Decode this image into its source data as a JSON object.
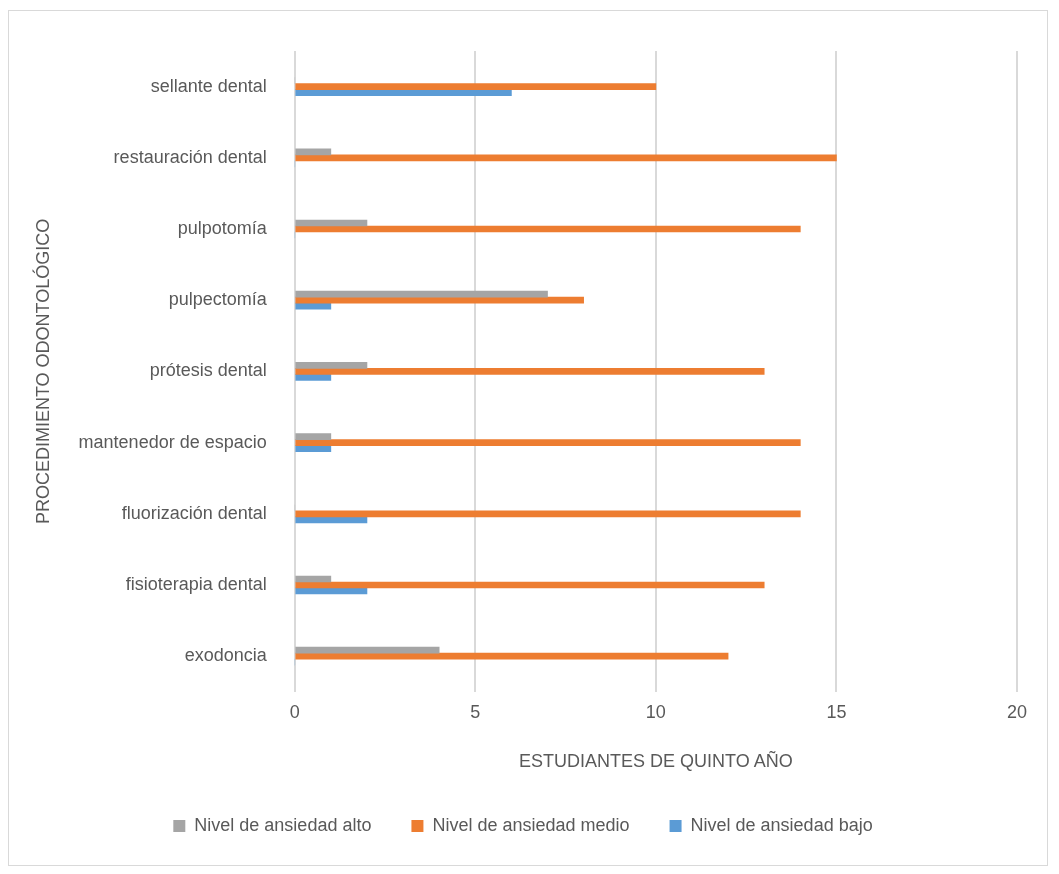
{
  "chart_data": {
    "type": "bar",
    "orientation": "horizontal",
    "xlabel": "ESTUDIANTES DE QUINTO AÑO",
    "ylabel": "PROCEDIMIENTO ODONTOLÓGICO",
    "categories": [
      "sellante dental",
      "restauración dental",
      "pulpotomía",
      "pulpectomía",
      "prótesis dental",
      "mantenedor de espacio",
      "fluorización dental",
      "fisioterapia dental",
      "exodoncia"
    ],
    "series": [
      {
        "name": "Nivel de ansiedad alto",
        "color": "#a5a5a5",
        "values": [
          0,
          1,
          2,
          7,
          2,
          1,
          0,
          1,
          4
        ]
      },
      {
        "name": "Nivel de ansiedad medio",
        "color": "#ed7d31",
        "values": [
          10,
          15,
          14,
          8,
          13,
          14,
          14,
          13,
          12
        ]
      },
      {
        "name": "Nivel de ansiedad bajo",
        "color": "#5b9bd5",
        "values": [
          6,
          0,
          0,
          1,
          1,
          1,
          2,
          2,
          0
        ]
      }
    ],
    "xlim": [
      0,
      20
    ],
    "xticks": [
      0,
      5,
      10,
      15,
      20
    ],
    "grid": "x",
    "legend": "bottom"
  }
}
